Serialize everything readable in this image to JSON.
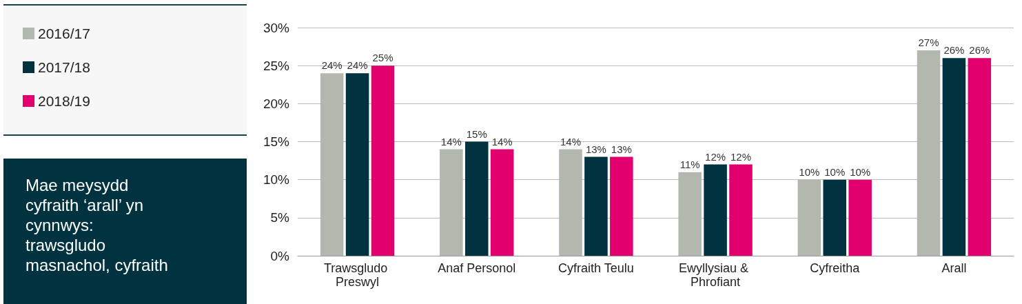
{
  "chart_data": {
    "type": "bar",
    "categories": [
      "Trawsgludo Preswyl",
      "Anaf Personol",
      "Cyfraith Teulu",
      "Ewyllysiau & Phrofiant",
      "Cyfreitha",
      "Arall"
    ],
    "series": [
      {
        "name": "2016/17",
        "color": "#b3b8af",
        "values": [
          24,
          14,
          14,
          11,
          10,
          27
        ],
        "value_labels": [
          "24%",
          "14%",
          "14%",
          "11%",
          "10%",
          "27%"
        ]
      },
      {
        "name": "2017/18",
        "color": "#00323f",
        "values": [
          24,
          15,
          13,
          12,
          10,
          26
        ],
        "value_labels": [
          "24%",
          "15%",
          "13%",
          "12%",
          "10%",
          "26%"
        ]
      },
      {
        "name": "2018/19",
        "color": "#e2006f",
        "values": [
          25,
          14,
          13,
          12,
          10,
          26
        ],
        "value_labels": [
          "25%",
          "14%",
          "13%",
          "12%",
          "10%",
          "26%"
        ]
      }
    ],
    "ylim": [
      0,
      30
    ],
    "yticks": [
      {
        "value": 0,
        "label": "0%"
      },
      {
        "value": 5,
        "label": "5%"
      },
      {
        "value": 10,
        "label": "10%"
      },
      {
        "value": 15,
        "label": "15%"
      },
      {
        "value": 20,
        "label": "20%"
      },
      {
        "value": 25,
        "label": "25%"
      },
      {
        "value": 30,
        "label": "30%"
      }
    ],
    "grid": "y",
    "legend": "left",
    "annotations": [
      "Mae meysydd cyfraith ‘arall’ yn cynnwys: trawsgludo masnachol, cyfraith"
    ]
  }
}
